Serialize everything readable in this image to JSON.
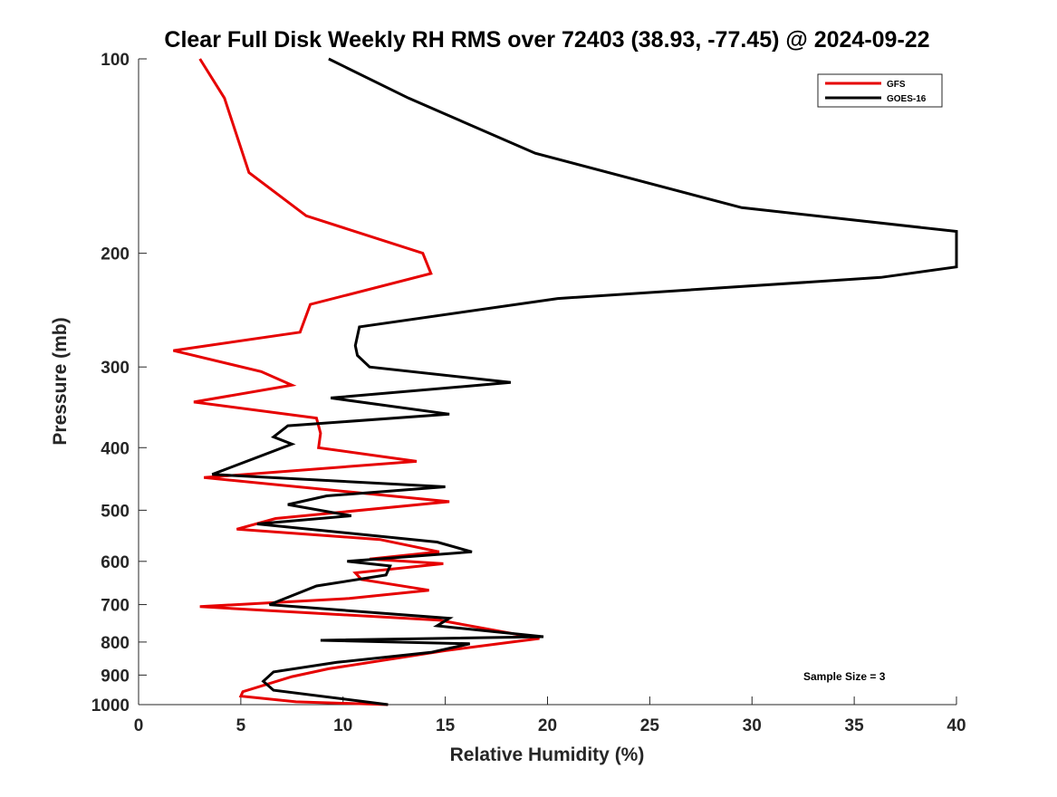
{
  "chart_data": {
    "type": "line",
    "title": "Clear Full Disk Weekly RH RMS over 72403 (38.93, -77.45) @ 2024-09-22",
    "xlabel": "Relative Humidity (%)",
    "ylabel": "Pressure (mb)",
    "xlim": [
      0,
      40
    ],
    "ylim": [
      100,
      1000
    ],
    "y_scale": "log",
    "y_reversed": true,
    "grid": false,
    "legend_position": "top-right",
    "x_ticks": [
      0,
      5,
      10,
      15,
      20,
      25,
      30,
      35,
      40
    ],
    "y_ticks": [
      100,
      200,
      300,
      400,
      500,
      600,
      700,
      800,
      900,
      1000
    ],
    "annotation": "Sample Size = 3",
    "series": [
      {
        "name": "GFS",
        "color": "#e60000",
        "x": [
          3.0,
          4.2,
          5.4,
          8.2,
          13.9,
          14.3,
          8.4,
          7.9,
          1.7,
          6.0,
          7.5,
          2.7,
          8.7,
          8.9,
          8.8,
          13.6,
          3.2,
          15.2,
          6.7,
          4.8,
          11.8,
          14.7,
          11.3,
          14.9,
          10.6,
          10.9,
          14.2,
          10.3,
          3.0,
          14.7,
          19.6,
          15.0,
          9.3,
          7.5,
          5.1,
          5.0,
          7.7,
          12.2
        ],
        "y": [
          100,
          115,
          150,
          175,
          200,
          215,
          240,
          265,
          283,
          305,
          320,
          340,
          360,
          380,
          400,
          420,
          445,
          485,
          515,
          535,
          555,
          580,
          595,
          605,
          625,
          640,
          665,
          685,
          705,
          740,
          790,
          825,
          880,
          905,
          955,
          970,
          990,
          1005
        ]
      },
      {
        "name": "GOES-16",
        "color": "#000000",
        "x": [
          9.3,
          13.2,
          19.4,
          29.5,
          40.0,
          40.0,
          36.3,
          20.5,
          10.8,
          10.6,
          10.7,
          11.3,
          18.2,
          9.4,
          15.2,
          7.3,
          6.6,
          7.5,
          3.6,
          15.0,
          9.2,
          7.3,
          10.4,
          5.8,
          14.6,
          16.3,
          10.2,
          12.3,
          12.1,
          8.7,
          6.4,
          15.2,
          14.6,
          19.8,
          8.9,
          16.2,
          14.3,
          9.7,
          6.6,
          6.1,
          6.6,
          12.2
        ],
        "y": [
          100,
          115,
          140,
          170,
          185,
          210,
          218,
          235,
          260,
          278,
          288,
          300,
          317,
          335,
          355,
          370,
          385,
          395,
          440,
          460,
          475,
          490,
          510,
          525,
          560,
          580,
          600,
          610,
          630,
          655,
          700,
          735,
          755,
          785,
          795,
          805,
          830,
          860,
          890,
          920,
          950,
          1005
        ]
      }
    ]
  }
}
